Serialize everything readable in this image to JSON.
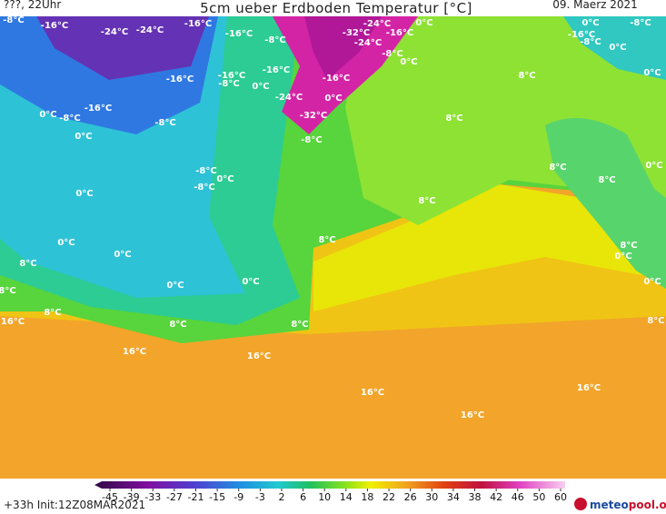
{
  "header": {
    "left": "???, 22Uhr",
    "title": "5cm ueber Erdboden Temperatur [°C]",
    "date": "09. Maerz 2021"
  },
  "labels": [
    "-8°C",
    "-16°C",
    "-24°C",
    "-24°C",
    "-16°C",
    "-16°C",
    "-8°C",
    "-24°C",
    "-32°C",
    "-24°C",
    "-16°C",
    "0°C",
    "-8°C",
    "0°C",
    "0°C",
    "-16°C",
    "-8°C",
    "-8°C",
    "0°C",
    "0°C",
    "8°C",
    "-16°C",
    "-8°C",
    "0°C",
    "-16°C",
    "-16°C",
    "-24°C",
    "-16°C",
    "0°C",
    "-32°C",
    "-8°C",
    "-16°C",
    "0°C",
    "-8°C",
    "-8°C",
    "0°C",
    "8°C",
    "8°C",
    "0°C",
    "8°C",
    "-8°C",
    "0°C",
    "-8°C",
    "0°C",
    "8°C",
    "8°C",
    "0°C",
    "8°C",
    "0°C",
    "8°C",
    "0°C",
    "8°C",
    "0°C",
    "0°C",
    "0°C",
    "8°C",
    "16°C",
    "8°C",
    "8°C",
    "8°C",
    "16°C",
    "16°C",
    "16°C",
    "16°C",
    "16°C"
  ],
  "colorbar": {
    "ticks": [
      -45,
      -39,
      -33,
      -27,
      -21,
      -15,
      -9,
      -3,
      2,
      6,
      10,
      14,
      18,
      22,
      26,
      30,
      34,
      38,
      42,
      46,
      50,
      60
    ]
  },
  "footer": {
    "run": "+33h Init:12Z08MAR2021",
    "logo_a": "meteo",
    "logo_b": "pool.org"
  }
}
